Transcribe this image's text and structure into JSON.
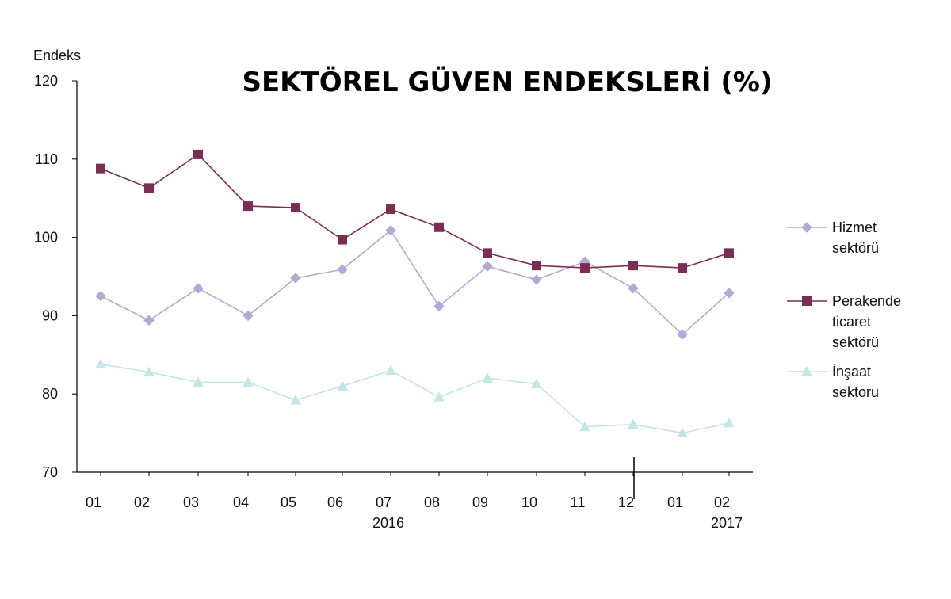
{
  "chart_data": {
    "type": "line",
    "title": "SEKTÖREL GÜVEN ENDEKSLERİ (%)",
    "ylabel": "Endeks",
    "ylim": [
      70,
      120
    ],
    "yticks": [
      70,
      80,
      90,
      100,
      110,
      120
    ],
    "categories": [
      "01",
      "02",
      "03",
      "04",
      "05",
      "06",
      "07",
      "08",
      "09",
      "10",
      "11",
      "12",
      "01",
      "02"
    ],
    "year_labels": [
      "2016",
      "2017"
    ],
    "grid": false,
    "legend_position": "right",
    "series": [
      {
        "name": "Hizmet sektörü",
        "legend_lines": [
          "Hizmet",
          "sektörü"
        ],
        "color": "#b3a8d6",
        "marker": "diamond",
        "values": [
          92.5,
          89.4,
          93.5,
          90.0,
          94.8,
          95.9,
          100.9,
          91.2,
          96.3,
          94.6,
          96.9,
          93.5,
          87.6,
          92.9
        ]
      },
      {
        "name": "Perakende ticaret sektörü",
        "legend_lines": [
          "Perakende",
          "ticaret",
          "sektörü"
        ],
        "color": "#7b2d52",
        "marker": "square",
        "values": [
          108.8,
          106.3,
          110.6,
          104.0,
          103.8,
          99.7,
          103.6,
          101.3,
          98.0,
          96.4,
          96.1,
          96.4,
          96.1,
          98.0
        ]
      },
      {
        "name": "İnşaat sektoru",
        "legend_lines": [
          "İnşaat",
          "sektoru"
        ],
        "color": "#c4e6e6",
        "marker": "triangle",
        "values": [
          83.8,
          82.8,
          81.5,
          81.5,
          79.2,
          81.0,
          83.0,
          79.6,
          82.0,
          81.3,
          75.8,
          76.1,
          75.0,
          76.3
        ]
      }
    ]
  }
}
